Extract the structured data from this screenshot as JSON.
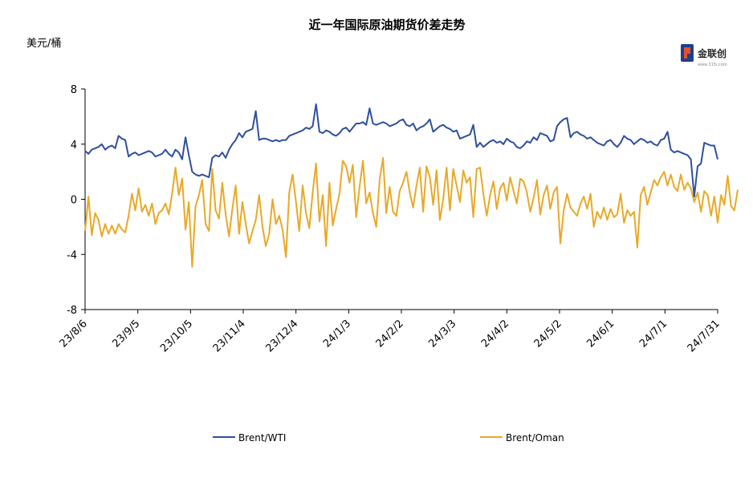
{
  "chart_data": {
    "type": "line",
    "title": "近一年国际原油期货价差走势",
    "ylabel": "美元/桶",
    "xlabel": "",
    "ylim": [
      -8,
      8
    ],
    "y_ticks": [
      "8",
      "4",
      "0",
      "-4",
      "-8"
    ],
    "x_ticks": [
      "23/8/6",
      "23/9/5",
      "23/10/5",
      "23/11/4",
      "23/12/4",
      "24/1/3",
      "24/2/2",
      "24/3/3",
      "24/4/2",
      "24/5/2",
      "24/6/1",
      "24/7/1",
      "24/7/31"
    ],
    "grid": false,
    "legend_position": "bottom",
    "series": [
      {
        "name": "Brent/WTI",
        "color": "#2e4f9e",
        "values": [
          3.5,
          3.3,
          3.6,
          3.7,
          3.8,
          4.0,
          3.6,
          3.8,
          3.9,
          3.7,
          4.6,
          4.4,
          4.3,
          3.1,
          3.3,
          3.4,
          3.2,
          3.3,
          3.4,
          3.5,
          3.4,
          3.1,
          3.2,
          3.3,
          3.6,
          3.3,
          3.1,
          3.6,
          3.4,
          2.9,
          4.5,
          3.2,
          2.0,
          1.8,
          1.7,
          1.8,
          1.7,
          1.6,
          3.0,
          3.2,
          3.1,
          3.4,
          3.0,
          3.6,
          4.0,
          4.3,
          4.8,
          4.5,
          4.9,
          5.0,
          5.1,
          6.4,
          4.3,
          4.4,
          4.4,
          4.3,
          4.2,
          4.3,
          4.2,
          4.3,
          4.3,
          4.6,
          4.7,
          4.8,
          4.9,
          5.0,
          5.2,
          5.1,
          5.3,
          6.9,
          4.9,
          4.8,
          5.0,
          4.9,
          4.7,
          4.6,
          4.8,
          5.1,
          5.2,
          4.9,
          5.2,
          5.5,
          5.5,
          5.6,
          5.4,
          6.6,
          5.5,
          5.4,
          5.5,
          5.6,
          5.5,
          5.3,
          5.4,
          5.5,
          5.7,
          5.8,
          5.4,
          5.3,
          5.5,
          5.0,
          5.2,
          5.3,
          5.5,
          5.8,
          4.9,
          5.1,
          5.3,
          5.4,
          5.2,
          5.1,
          4.9,
          5.0,
          4.4,
          4.5,
          4.6,
          4.7,
          5.4,
          3.8,
          4.1,
          3.8,
          4.0,
          4.2,
          4.3,
          4.1,
          4.2,
          4.0,
          4.4,
          4.2,
          4.1,
          3.8,
          3.7,
          3.9,
          4.2,
          4.1,
          4.5,
          4.3,
          4.8,
          4.7,
          4.6,
          4.2,
          4.3,
          5.3,
          5.6,
          5.8,
          5.9,
          4.5,
          4.8,
          4.9,
          4.7,
          4.6,
          4.4,
          4.5,
          4.3,
          4.1,
          4.0,
          3.9,
          4.2,
          4.3,
          4.0,
          3.8,
          4.1,
          4.6,
          4.4,
          4.3,
          4.0,
          4.2,
          4.4,
          4.3,
          4.1,
          4.2,
          4.0,
          3.9,
          4.3,
          4.4,
          4.9,
          3.6,
          3.4,
          3.5,
          3.4,
          3.3,
          3.2,
          2.9,
          0.2,
          2.4,
          2.6,
          4.1,
          4.0,
          3.9,
          3.9,
          2.9
        ]
      },
      {
        "name": "Brent/Oman",
        "color": "#e8a928",
        "values": [
          -2.3,
          0.2,
          -2.6,
          -1.0,
          -1.5,
          -2.7,
          -1.8,
          -2.5,
          -1.9,
          -2.5,
          -1.8,
          -2.2,
          -2.4,
          -1.2,
          0.4,
          -0.8,
          0.8,
          -0.9,
          -0.4,
          -1.2,
          -0.3,
          -1.8,
          -1.0,
          -0.8,
          -0.3,
          -1.1,
          0.4,
          2.3,
          0.3,
          1.5,
          -2.2,
          -0.2,
          -4.9,
          -0.5,
          0.3,
          1.4,
          -1.8,
          -2.3,
          2.2,
          -0.8,
          -1.4,
          1.2,
          -1.1,
          -2.7,
          -0.7,
          1.0,
          -2.5,
          -0.2,
          -1.8,
          -3.2,
          -2.3,
          -1.5,
          0.3,
          -2.0,
          -3.4,
          -2.5,
          0.0,
          -1.8,
          -1.2,
          -2.2,
          -4.2,
          0.5,
          1.8,
          -0.2,
          -2.3,
          1.0,
          -1.0,
          -2.1,
          0.5,
          2.6,
          -1.6,
          0.3,
          -3.4,
          1.2,
          -1.9,
          -0.7,
          0.4,
          2.8,
          2.4,
          1.2,
          2.5,
          -1.3,
          0.9,
          2.8,
          -0.3,
          0.5,
          -1.0,
          -2.0,
          1.4,
          3.0,
          -1.0,
          0.9,
          -0.9,
          -1.2,
          0.6,
          1.2,
          2.0,
          0.5,
          -0.6,
          1.0,
          2.3,
          -0.9,
          2.4,
          1.6,
          -0.4,
          2.1,
          -1.5,
          0.0,
          2.3,
          -0.8,
          2.2,
          1.0,
          -0.2,
          2.1,
          1.2,
          1.6,
          -1.3,
          2.2,
          2.3,
          0.4,
          -1.2,
          0.3,
          1.3,
          -0.7,
          0.8,
          1.2,
          -0.1,
          1.6,
          0.6,
          -0.3,
          1.5,
          1.3,
          0.5,
          -0.9,
          0.1,
          1.4,
          -1.1,
          0.3,
          1.0,
          -0.7,
          0.5,
          0.9,
          -3.2,
          -0.8,
          0.4,
          -0.6,
          -0.9,
          -1.2,
          -0.3,
          0.2,
          -0.7,
          0.4,
          -2.0,
          -0.9,
          -1.4,
          -0.6,
          -1.5,
          -0.7,
          -1.3,
          -1.1,
          0.4,
          -1.7,
          -0.8,
          -1.2,
          -0.9,
          -3.5,
          0.3,
          0.9,
          -0.4,
          0.5,
          1.4,
          1.0,
          1.6,
          2.0,
          1.0,
          1.8,
          0.9,
          0.6,
          1.8,
          0.7,
          1.2,
          0.8,
          -0.2,
          0.5,
          -0.9,
          0.6,
          0.3,
          -1.2,
          0.2,
          -1.7,
          0.3,
          -0.4,
          1.7,
          -0.5,
          -0.8,
          0.7
        ]
      }
    ]
  }
}
